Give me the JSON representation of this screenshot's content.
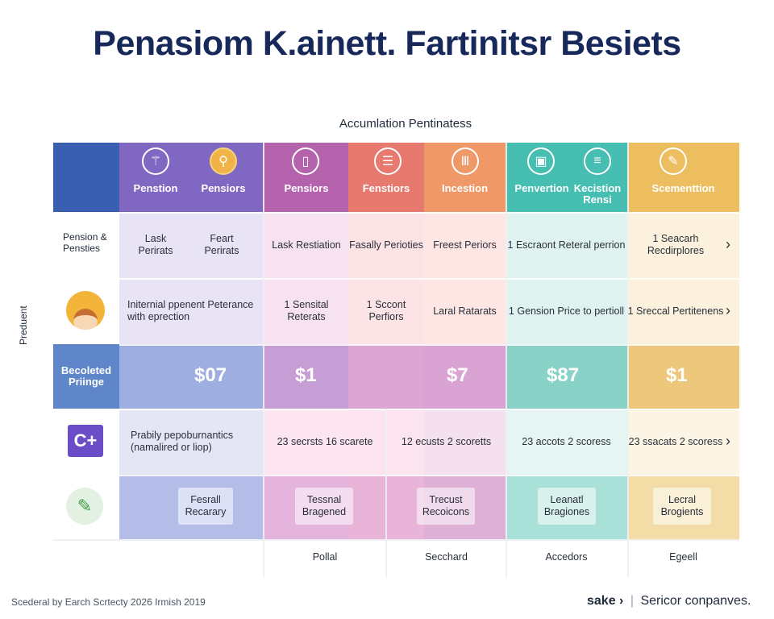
{
  "title": "Penasiom K.ainett. Fartinitsr Besiets",
  "subtitle": "Accumlation Pentinatess",
  "side_label": "Preduent",
  "header": {
    "col1a": "Penstion",
    "col1b": "Pensiors",
    "col2": "Pensiors",
    "col3": "Fenstiors",
    "col4": "Incestion",
    "col5a": "Penvertion",
    "col5b": "Kecistion Rensi",
    "col6": "Scementtion"
  },
  "rows": {
    "r1_label": "Pension & Pensties",
    "r1_c1a": "Lask Perirats",
    "r1_c1b": "Feart Perirats",
    "r1_c2": "Lask Restiation",
    "r1_c3": "Fasally Perioties",
    "r1_c4": "Freest Periors",
    "r1_c5": "1 Escraont Reteral perrion",
    "r1_c6": "1 Seacarh Recdirplores",
    "r2_c1": "Initernial ppenent Peterance with eprection",
    "r2_c2": "1 Sensital Reterats",
    "r2_c3": "1 Sccont Perfiors",
    "r2_c4": "Laral Ratarats",
    "r2_c5": "1 Gension Price to pertioll",
    "r2_c6": "1 Sreccal Pertitenens",
    "r3_label": "Becoleted Priinge",
    "r3_c1": "$07",
    "r3_c2": "$1",
    "r3_c4": "$7",
    "r3_c5": "$87",
    "r3_c6": "$1",
    "r4_c1": "Prabily pepoburnantics (namalired or liop)",
    "r4_c2": "23 secrsts 16 scarete",
    "r4_c4": "12 ecusts 2 scoretts",
    "r4_c5": "23 accots 2 scoress",
    "r4_c6": "23 ssacats 2 scoress",
    "r5_c1": "Fesrall Recarary",
    "r5_c2": "Tessnal Bragened",
    "r5_c4": "Trecust Recoicons",
    "r5_c5": "Leanatl Bragiones",
    "r5_c6": "Lecral Brogients",
    "r6_c2": "Pollal",
    "r6_c4": "Secchard",
    "r6_c5": "Accedors",
    "r6_c6": "Egeell"
  },
  "row_icons": [
    "avatar-icon",
    "code-icon",
    "document-icon"
  ],
  "header_icons": [
    "figure-icon",
    "bulb-icon",
    "tablet-icon",
    "list-icon",
    "grid-icon",
    "bus-icon",
    "menu-icon",
    "badge-icon"
  ],
  "footer": {
    "left": "Scederal by Earch Scrtecty 2026 Irmish 2019",
    "brand": "sake",
    "brand_arrow": "›",
    "separator": "|",
    "right": "Sericor conpanves."
  },
  "colors": {
    "navy": "#17285a",
    "blue": "#3f64b3",
    "purple": "#8a6fc4",
    "magenta": "#b56bb1",
    "coral": "#e77b74",
    "orange": "#ee9a6b",
    "teal": "#47bfb3",
    "gold": "#ecc061"
  }
}
